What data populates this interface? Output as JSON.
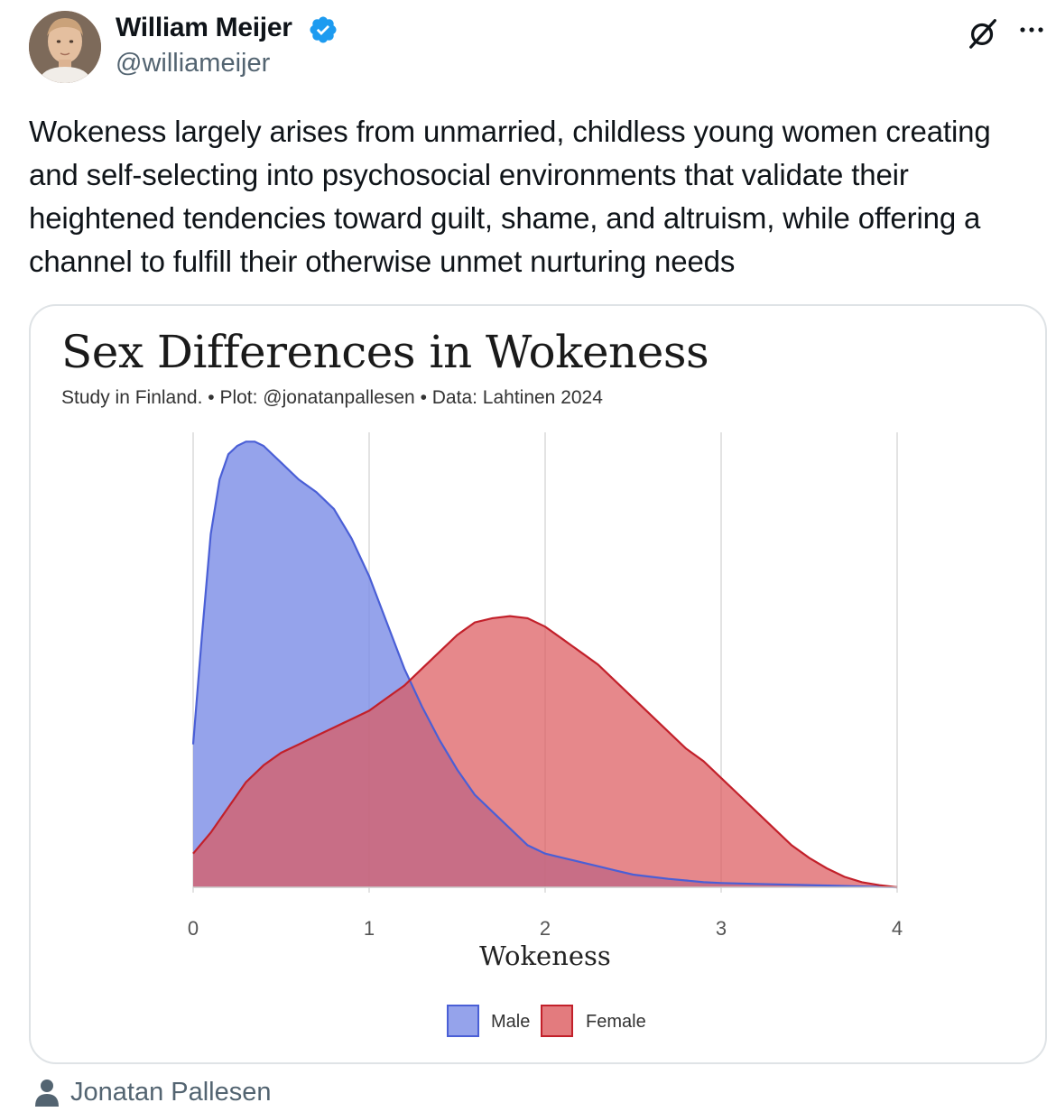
{
  "tweet": {
    "author": {
      "name": "William Meijer",
      "handle": "@williameijer",
      "verified": true
    },
    "text": "Wokeness largely arises from unmarried, childless young women creating and self-selecting into psychosocial environments that validate their heightened tendencies toward guilt, shame, and altruism, while offering a channel to fulfill their otherwise unmet nurturing needs",
    "actions": {
      "grok_icon": "grok-icon",
      "more_icon": "more-icon"
    },
    "media_attribution": {
      "icon": "person-icon",
      "name": "Jonatan Pallesen"
    }
  },
  "chart_data": {
    "type": "area",
    "title": "Sex Differences in Wokeness",
    "subtitle": "Study in Finland. • Plot: @jonatanpallesen • Data: Lahtinen 2024",
    "xlabel": "Wokeness",
    "ylabel": "",
    "xlim": [
      0,
      4
    ],
    "ylim": [
      0,
      1.05
    ],
    "x_ticks": [
      "0",
      "1",
      "2",
      "3",
      "4"
    ],
    "grid": "vertical",
    "legend": {
      "position": "bottom-center"
    },
    "series": [
      {
        "name": "Male",
        "color": "#7a8ce6",
        "stroke": "#4a5fd6",
        "x": [
          0,
          0.05,
          0.1,
          0.15,
          0.2,
          0.25,
          0.3,
          0.35,
          0.4,
          0.5,
          0.6,
          0.7,
          0.8,
          0.9,
          1.0,
          1.1,
          1.2,
          1.3,
          1.4,
          1.5,
          1.6,
          1.7,
          1.8,
          1.9,
          2.0,
          2.1,
          2.2,
          2.3,
          2.4,
          2.5,
          2.6,
          2.7,
          2.8,
          2.9,
          3.0,
          3.2,
          3.4,
          3.6,
          3.8,
          4.0
        ],
        "values": [
          0.34,
          0.6,
          0.84,
          0.97,
          1.03,
          1.05,
          1.06,
          1.06,
          1.05,
          1.01,
          0.97,
          0.94,
          0.9,
          0.83,
          0.74,
          0.63,
          0.52,
          0.43,
          0.35,
          0.28,
          0.22,
          0.18,
          0.14,
          0.1,
          0.08,
          0.07,
          0.06,
          0.05,
          0.04,
          0.03,
          0.025,
          0.02,
          0.016,
          0.012,
          0.01,
          0.008,
          0.006,
          0.004,
          0.002,
          0.0
        ]
      },
      {
        "name": "Female",
        "color": "#dc5a5e",
        "stroke": "#c2202a",
        "x": [
          0,
          0.1,
          0.2,
          0.3,
          0.4,
          0.5,
          0.6,
          0.7,
          0.8,
          0.9,
          1.0,
          1.1,
          1.2,
          1.3,
          1.4,
          1.5,
          1.6,
          1.7,
          1.8,
          1.9,
          2.0,
          2.1,
          2.2,
          2.3,
          2.4,
          2.5,
          2.6,
          2.7,
          2.8,
          2.9,
          3.0,
          3.1,
          3.2,
          3.3,
          3.4,
          3.5,
          3.6,
          3.7,
          3.8,
          3.9,
          4.0
        ],
        "values": [
          0.08,
          0.13,
          0.19,
          0.25,
          0.29,
          0.32,
          0.34,
          0.36,
          0.38,
          0.4,
          0.42,
          0.45,
          0.48,
          0.52,
          0.56,
          0.6,
          0.63,
          0.64,
          0.645,
          0.64,
          0.62,
          0.59,
          0.56,
          0.53,
          0.49,
          0.45,
          0.41,
          0.37,
          0.33,
          0.3,
          0.26,
          0.22,
          0.18,
          0.14,
          0.1,
          0.07,
          0.045,
          0.025,
          0.012,
          0.005,
          0.0
        ]
      }
    ]
  }
}
